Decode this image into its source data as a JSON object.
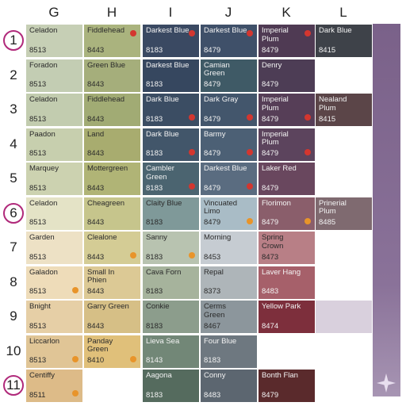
{
  "columns": [
    "G",
    "H",
    "I",
    "J",
    "K",
    "L"
  ],
  "rows": [
    {
      "label": "1",
      "circled": true,
      "cells": [
        {
          "name": "Celadon",
          "code": "8513",
          "color": "#c6cfb5"
        },
        {
          "name": "Fiddlehead",
          "code": "8443",
          "color": "#aab37e",
          "dot": "#d3362f"
        },
        {
          "name": "Darkest Blue",
          "code": "8183",
          "color": "#3a4962",
          "dot": "#d3362f"
        },
        {
          "name": "Darkest Blue",
          "code": "8479",
          "color": "#3f5069",
          "dot": "#d3362f"
        },
        {
          "name": "Imperial Plum",
          "code": "8479",
          "color": "#4f3a53",
          "dot": "#d3362f"
        },
        {
          "name": "Dark Blue",
          "code": "8415",
          "color": "#3e4249"
        }
      ]
    },
    {
      "label": "2",
      "circled": false,
      "cells": [
        {
          "name": "Foradon",
          "code": "8513",
          "color": "#c3cdb3"
        },
        {
          "name": "Green Blue",
          "code": "8443",
          "color": "#a5ae7b"
        },
        {
          "name": "Darkest Blue",
          "code": "8183",
          "color": "#36475f"
        },
        {
          "name": "Camian Green",
          "code": "8479",
          "color": "#3f5a66"
        },
        {
          "name": "Denry",
          "code": "8479",
          "color": "#4d3d55"
        },
        null
      ]
    },
    {
      "label": "3",
      "circled": false,
      "cells": [
        {
          "name": "Celadon",
          "code": "8513",
          "color": "#c2ccaf"
        },
        {
          "name": "Fiddlehead",
          "code": "8443",
          "color": "#a1ab74"
        },
        {
          "name": "Dark Blue",
          "code": "8183",
          "color": "#3b4d63",
          "dot": "#d3362f"
        },
        {
          "name": "Dark Gray",
          "code": "8479",
          "color": "#43566c",
          "dot": "#d3362f"
        },
        {
          "name": "Imperial Plum",
          "code": "8479",
          "color": "#563e57",
          "dot": "#d3362f"
        },
        {
          "name": "Nealand Plum",
          "code": "8415",
          "color": "#5b4548"
        }
      ]
    },
    {
      "label": "4",
      "circled": false,
      "cells": [
        {
          "name": "Paadon",
          "code": "8513",
          "color": "#c7cfae"
        },
        {
          "name": "Land",
          "code": "8443",
          "color": "#a8ac6f"
        },
        {
          "name": "Dark  Blue",
          "code": "8183",
          "color": "#42566a",
          "dot": "#d3362f"
        },
        {
          "name": "Barmy",
          "code": "8479",
          "color": "#4c6075",
          "dot": "#d3362f"
        },
        {
          "name": "Imperial Plum",
          "code": "8479",
          "color": "#5c445d",
          "dot": "#d3362f"
        },
        null
      ]
    },
    {
      "label": "5",
      "circled": false,
      "cells": [
        {
          "name": "Marquey",
          "code": "8513",
          "color": "#ccd2b0"
        },
        {
          "name": "Mottergreen",
          "code": "8443",
          "color": "#b0b476"
        },
        {
          "name": "Cambler Green",
          "code": "8183",
          "color": "#4b6470",
          "dot": "#d3362f"
        },
        {
          "name": "Darkest Blue",
          "code": "8479",
          "color": "#5a6c80",
          "dot": "#d3362f"
        },
        {
          "name": "Laker Red",
          "code": "8479",
          "color": "#69475e"
        },
        null
      ]
    },
    {
      "label": "6",
      "circled": true,
      "cells": [
        {
          "name": "Celadon",
          "code": "8513",
          "color": "#e4e3c6"
        },
        {
          "name": "Cheagreen",
          "code": "8443",
          "color": "#c6c58c"
        },
        {
          "name": "Claity Blue",
          "code": "8183",
          "color": "#7f9999"
        },
        {
          "name": "Vincuated Limo",
          "code": "8479",
          "color": "#a9bcc6",
          "dot": "#e8942a"
        },
        {
          "name": "Florimon",
          "code": "8479",
          "color": "#8a5e6b",
          "dot": "#e8942a"
        },
        {
          "name": "Prinerial Plum",
          "code": "8485",
          "color": "#7f6a70"
        }
      ]
    },
    {
      "label": "7",
      "circled": false,
      "cells": [
        {
          "name": "Garden",
          "code": "8513",
          "color": "#ede1c5"
        },
        {
          "name": "Clealone",
          "code": "8443",
          "color": "#d4cc95",
          "dot": "#e8942a"
        },
        {
          "name": "Sanny",
          "code": "8183",
          "color": "#b8c3b0",
          "dot": "#e8942a"
        },
        {
          "name": "Morning",
          "code": "8453",
          "color": "#c6ccd2"
        },
        {
          "name": "Spring Crown",
          "code": "8473",
          "color": "#b87f86"
        },
        null
      ]
    },
    {
      "label": "8",
      "circled": false,
      "cells": [
        {
          "name": "Galadon",
          "code": "8513",
          "color": "#eedcb9",
          "dot": "#e8942a"
        },
        {
          "name": "Small In Phien",
          "code": "8443",
          "color": "#dcc995"
        },
        {
          "name": "Cava Forn",
          "code": "8183",
          "color": "#a6b39c"
        },
        {
          "name": "Repal",
          "code": "8373",
          "color": "#aeb5b9"
        },
        {
          "name": "Laver Hang",
          "code": "8483",
          "color": "#a6606a"
        },
        null
      ]
    },
    {
      "label": "9",
      "circled": false,
      "cells": [
        {
          "name": "Bnight",
          "code": "8513",
          "color": "#e6cfa6"
        },
        {
          "name": "Garry Green",
          "code": "8443",
          "color": "#d6bf86"
        },
        {
          "name": "Conkie",
          "code": "8183",
          "color": "#8c9d8c"
        },
        {
          "name": "Cerms Green",
          "code": "8467",
          "color": "#8c969c"
        },
        {
          "name": "Yellow Park",
          "code": "8474",
          "color": "#7d2f3c"
        },
        {
          "name": null,
          "code": null,
          "color": "#d9d0dd"
        }
      ]
    },
    {
      "label": "10",
      "circled": false,
      "cells": [
        {
          "name": "Liccarlon",
          "code": "8513",
          "color": "#e0c596",
          "dot": "#e8942a"
        },
        {
          "name": "Panday Green",
          "code": "8410",
          "color": "#e0c07a",
          "dot": "#e8942a"
        },
        {
          "name": "Lieva Sea",
          "code": "8143",
          "color": "#728777"
        },
        {
          "name": "Four Blue",
          "code": "8183",
          "color": "#6e7880"
        },
        null,
        null
      ]
    },
    {
      "label": "11",
      "circled": true,
      "cells": [
        {
          "name": "Centiffy",
          "code": "8511",
          "color": "#ddbb88",
          "dot": "#e8942a"
        },
        null,
        {
          "name": "Aagona",
          "code": "8183",
          "color": "#556b5e"
        },
        {
          "name": "Conny",
          "code": "8483",
          "color": "#5c6670"
        },
        {
          "name": "Bonth Flan",
          "code": "8479",
          "color": "#5a2a2c"
        },
        null
      ]
    }
  ]
}
